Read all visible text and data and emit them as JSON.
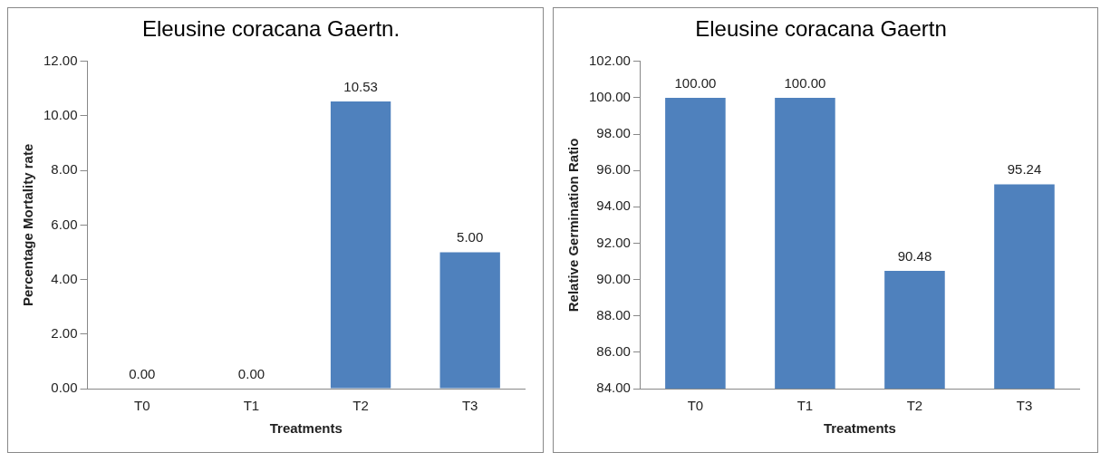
{
  "chart_data": [
    {
      "type": "bar",
      "title": "Eleusine coracana Gaertn.",
      "xlabel": "Treatments",
      "ylabel": "Percentage Mortality rate",
      "categories": [
        "T0",
        "T1",
        "T2",
        "T3"
      ],
      "values": [
        0,
        0,
        10.53,
        5
      ],
      "value_labels": [
        "0.00",
        "0.00",
        "10.53",
        "5.00"
      ],
      "color": "#4f81bd",
      "ylim": [
        0,
        12
      ],
      "yticks": [
        {
          "value": 0,
          "label": "0.00"
        },
        {
          "value": 2,
          "label": "2.00"
        },
        {
          "value": 4,
          "label": "4.00"
        },
        {
          "value": 6,
          "label": "6.00"
        },
        {
          "value": 8,
          "label": "8.00"
        },
        {
          "value": 10,
          "label": "10.00"
        },
        {
          "value": 12,
          "label": "12.00"
        }
      ],
      "grid": false,
      "legend": false
    },
    {
      "type": "bar",
      "title": "Eleusine coracana Gaertn",
      "xlabel": "Treatments",
      "ylabel": "Relative Germination Ratio",
      "categories": [
        "T0",
        "T1",
        "T2",
        "T3"
      ],
      "values": [
        100,
        100,
        90.48,
        95.24
      ],
      "value_labels": [
        "100.00",
        "100.00",
        "90.48",
        "95.24"
      ],
      "color": "#4f81bd",
      "ylim": [
        84,
        102
      ],
      "yticks": [
        {
          "value": 84,
          "label": "84.00"
        },
        {
          "value": 86,
          "label": "86.00"
        },
        {
          "value": 88,
          "label": "88.00"
        },
        {
          "value": 90,
          "label": "90.00"
        },
        {
          "value": 92,
          "label": "92.00"
        },
        {
          "value": 94,
          "label": "94.00"
        },
        {
          "value": 96,
          "label": "96.00"
        },
        {
          "value": 98,
          "label": "98.00"
        },
        {
          "value": 100,
          "label": "100.00"
        },
        {
          "value": 102,
          "label": "102.00"
        }
      ],
      "grid": false,
      "legend": false
    }
  ]
}
